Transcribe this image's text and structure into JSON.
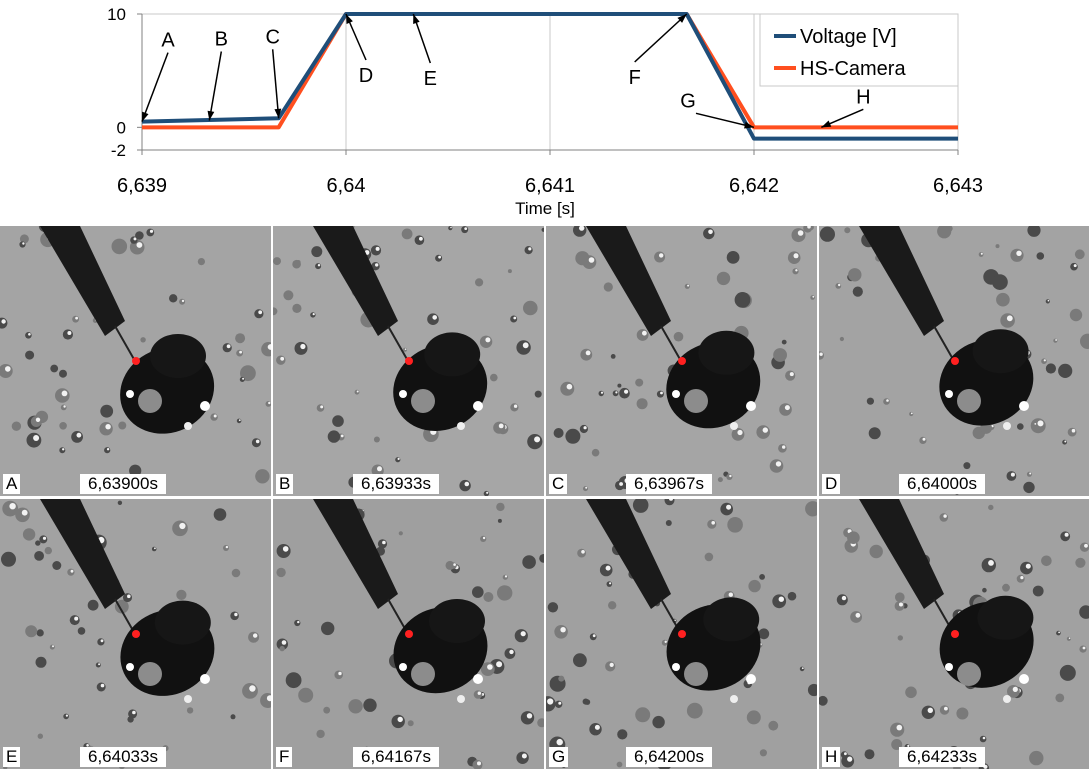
{
  "chart_data": {
    "type": "line",
    "xlabel": "Time [s]",
    "ylabel": "",
    "xlim": [
      6.639,
      6.643
    ],
    "ylim": [
      -2,
      10
    ],
    "x_ticks": [
      "6,639",
      "6,64",
      "6,641",
      "6,642",
      "6,643"
    ],
    "x_tick_values": [
      6.639,
      6.64,
      6.641,
      6.642,
      6.643
    ],
    "y_ticks": [
      "-2",
      "0",
      "10"
    ],
    "y_tick_values": [
      -2,
      0,
      10
    ],
    "grid": "vertical",
    "legend_position": "top-right",
    "series": [
      {
        "name": "Voltage [V]",
        "color": "#1f4e79",
        "x": [
          6.639,
          6.63967,
          6.64,
          6.64167,
          6.642,
          6.643
        ],
        "y": [
          0.5,
          0.8,
          10,
          10,
          -1.0,
          -1.0
        ]
      },
      {
        "name": "HS-Camera",
        "color": "#ff4f1f",
        "x": [
          6.639,
          6.63967,
          6.64,
          6.64167,
          6.642,
          6.643
        ],
        "y": [
          0.0,
          0.0,
          10,
          10,
          0.0,
          0.0
        ]
      }
    ],
    "annotations": [
      {
        "label": "A",
        "x": 6.639,
        "y": 0.5
      },
      {
        "label": "B",
        "x": 6.63933,
        "y": 0.6
      },
      {
        "label": "C",
        "x": 6.63967,
        "y": 0.8
      },
      {
        "label": "D",
        "x": 6.64,
        "y": 10
      },
      {
        "label": "E",
        "x": 6.64033,
        "y": 10
      },
      {
        "label": "F",
        "x": 6.64167,
        "y": 10
      },
      {
        "label": "G",
        "x": 6.642,
        "y": 0
      },
      {
        "label": "H",
        "x": 6.64233,
        "y": 0
      }
    ]
  },
  "frames": [
    {
      "letter": "A",
      "time": "6,63900s",
      "bg": "#a4a4a4"
    },
    {
      "letter": "B",
      "time": "6,63933s",
      "bg": "#a6a6a6"
    },
    {
      "letter": "C",
      "time": "6,63967s",
      "bg": "#a5a5a5"
    },
    {
      "letter": "D",
      "time": "6,64000s",
      "bg": "#a3a3a3"
    },
    {
      "letter": "E",
      "time": "6,64033s",
      "bg": "#a2a2a2"
    },
    {
      "letter": "F",
      "time": "6,64167s",
      "bg": "#9f9f9f"
    },
    {
      "letter": "G",
      "time": "6,64200s",
      "bg": "#a0a0a0"
    },
    {
      "letter": "H",
      "time": "6,64233s",
      "bg": "#a1a1a1"
    }
  ]
}
